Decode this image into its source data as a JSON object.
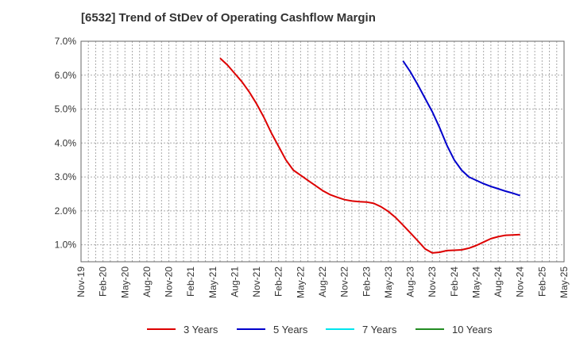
{
  "chart_data": {
    "type": "line",
    "title": "[6532]  Trend of StDev of Operating Cashflow Margin",
    "xlabel": "",
    "ylabel": "",
    "x_ticks": [
      "Nov-19",
      "Feb-20",
      "May-20",
      "Aug-20",
      "Nov-20",
      "Feb-21",
      "May-21",
      "Aug-21",
      "Nov-21",
      "Feb-22",
      "May-22",
      "Aug-22",
      "Nov-22",
      "Feb-23",
      "May-23",
      "Aug-23",
      "Nov-23",
      "Feb-24",
      "May-24",
      "Aug-24",
      "Nov-24",
      "Feb-25",
      "May-25"
    ],
    "y_ticks": [
      "1.0%",
      "2.0%",
      "3.0%",
      "4.0%",
      "5.0%",
      "6.0%",
      "7.0%"
    ],
    "ylim": [
      0.5,
      7.0
    ],
    "y_unit": "%",
    "grid": true,
    "legend_position": "bottom",
    "series": [
      {
        "name": "3 Years",
        "color": "#dd0000",
        "points": [
          [
            "Jun-21",
            6.5
          ],
          [
            "Jul-21",
            6.3
          ],
          [
            "Aug-21",
            6.05
          ],
          [
            "Sep-21",
            5.8
          ],
          [
            "Oct-21",
            5.5
          ],
          [
            "Nov-21",
            5.15
          ],
          [
            "Dec-21",
            4.75
          ],
          [
            "Jan-22",
            4.3
          ],
          [
            "Feb-22",
            3.9
          ],
          [
            "Mar-22",
            3.5
          ],
          [
            "Apr-22",
            3.2
          ],
          [
            "May-22",
            3.05
          ],
          [
            "Jun-22",
            2.9
          ],
          [
            "Jul-22",
            2.75
          ],
          [
            "Aug-22",
            2.6
          ],
          [
            "Sep-22",
            2.48
          ],
          [
            "Oct-22",
            2.4
          ],
          [
            "Nov-22",
            2.33
          ],
          [
            "Dec-22",
            2.29
          ],
          [
            "Jan-23",
            2.27
          ],
          [
            "Feb-23",
            2.26
          ],
          [
            "Mar-23",
            2.22
          ],
          [
            "Apr-23",
            2.12
          ],
          [
            "May-23",
            1.98
          ],
          [
            "Jun-23",
            1.8
          ],
          [
            "Jul-23",
            1.58
          ],
          [
            "Aug-23",
            1.35
          ],
          [
            "Sep-23",
            1.12
          ],
          [
            "Oct-23",
            0.88
          ],
          [
            "Nov-23",
            0.76
          ],
          [
            "Dec-23",
            0.78
          ],
          [
            "Jan-24",
            0.83
          ],
          [
            "Feb-24",
            0.84
          ],
          [
            "Mar-24",
            0.85
          ],
          [
            "Apr-24",
            0.9
          ],
          [
            "May-24",
            0.98
          ],
          [
            "Jun-24",
            1.08
          ],
          [
            "Jul-24",
            1.18
          ],
          [
            "Aug-24",
            1.24
          ],
          [
            "Sep-24",
            1.28
          ],
          [
            "Oct-24",
            1.29
          ],
          [
            "Nov-24",
            1.3
          ]
        ]
      },
      {
        "name": "5 Years",
        "color": "#0000cc",
        "points": [
          [
            "Jul-23",
            6.42
          ],
          [
            "Aug-23",
            6.1
          ],
          [
            "Sep-23",
            5.72
          ],
          [
            "Oct-23",
            5.32
          ],
          [
            "Nov-23",
            4.92
          ],
          [
            "Dec-23",
            4.45
          ],
          [
            "Jan-24",
            3.93
          ],
          [
            "Feb-24",
            3.5
          ],
          [
            "Mar-24",
            3.2
          ],
          [
            "Apr-24",
            3.0
          ],
          [
            "May-24",
            2.9
          ],
          [
            "Jun-24",
            2.8
          ],
          [
            "Jul-24",
            2.72
          ],
          [
            "Aug-24",
            2.65
          ],
          [
            "Sep-24",
            2.58
          ],
          [
            "Oct-24",
            2.52
          ],
          [
            "Nov-24",
            2.45
          ]
        ]
      },
      {
        "name": "7 Years",
        "color": "#00e5ee",
        "points": []
      },
      {
        "name": "10 Years",
        "color": "#228b22",
        "points": []
      }
    ]
  }
}
